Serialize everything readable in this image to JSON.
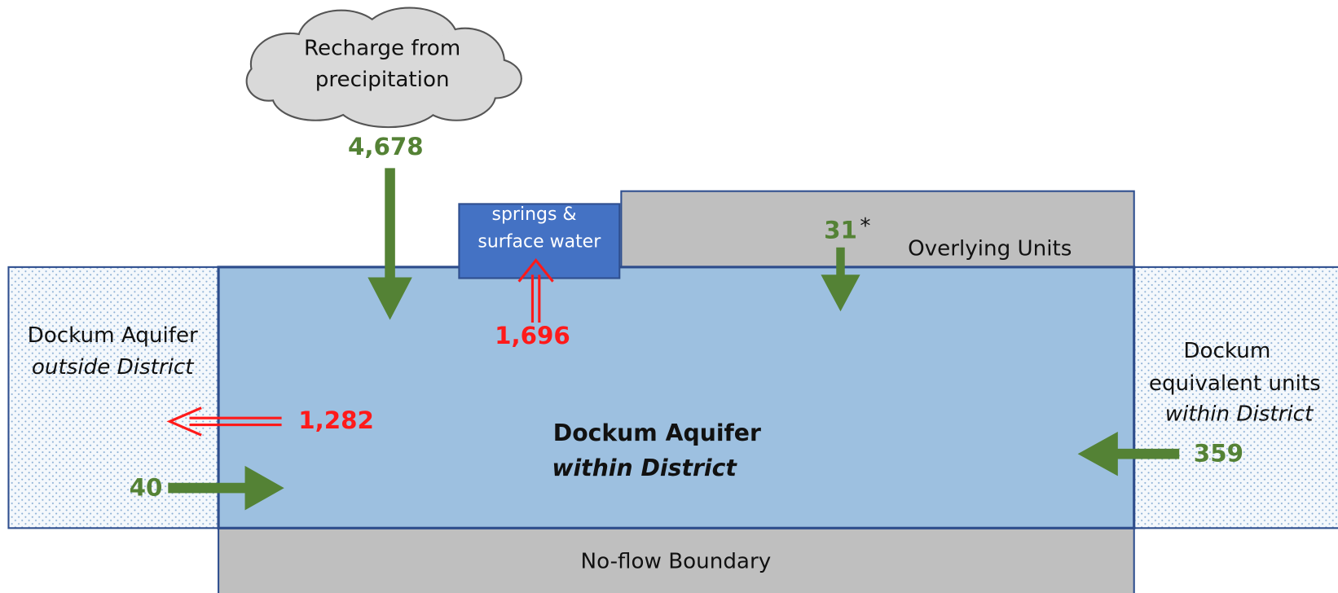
{
  "cloud": {
    "lines": [
      "Recharge from",
      "precipitation"
    ]
  },
  "recharge": "4,678",
  "springs": {
    "lines": [
      "springs &",
      "surface water"
    ],
    "flow": "1,696"
  },
  "overlying": {
    "label": "Overlying Units",
    "flow": "31",
    "note": "*"
  },
  "outside": {
    "lines": [
      "Dockum Aquifer",
      "outside District"
    ],
    "outflow": "1,282",
    "inflow": "40"
  },
  "main": {
    "lines": [
      "Dockum Aquifer",
      "within District"
    ]
  },
  "equivalent": {
    "lines": [
      "Dockum",
      "equivalent units",
      "within District"
    ],
    "inflow": "359"
  },
  "bottom": {
    "label": "No-flow Boundary"
  }
}
